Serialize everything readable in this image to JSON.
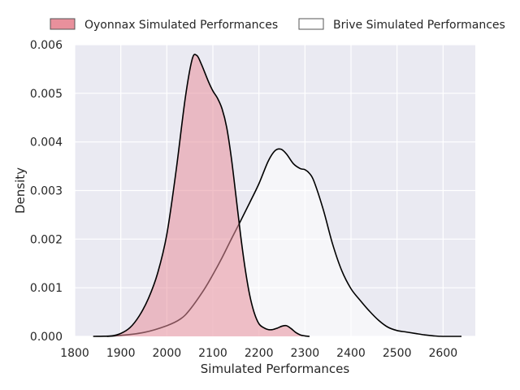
{
  "chart_data": {
    "type": "area",
    "title": "",
    "xlabel": "Simulated Performances",
    "ylabel": "Density",
    "xlim": [
      1800,
      2670
    ],
    "ylim": [
      0,
      0.006
    ],
    "xticks": [
      1800,
      1900,
      2000,
      2100,
      2200,
      2300,
      2400,
      2500,
      2600
    ],
    "xtick_labels": [
      "1800",
      "1900",
      "2000",
      "2100",
      "2200",
      "2300",
      "2400",
      "2500",
      "2600"
    ],
    "yticks": [
      0,
      0.001,
      0.002,
      0.003,
      0.004,
      0.005,
      0.006
    ],
    "ytick_labels": [
      "0.000",
      "0.001",
      "0.002",
      "0.003",
      "0.004",
      "0.005",
      "0.006"
    ],
    "grid": true,
    "legend_position": "top",
    "series": [
      {
        "name": "Oyonnax Simulated Performances",
        "color": "#e8909c",
        "fill_opacity": 0.55,
        "x": [
          1840,
          1880,
          1900,
          1920,
          1940,
          1960,
          1980,
          2000,
          2020,
          2040,
          2055,
          2065,
          2075,
          2090,
          2100,
          2110,
          2120,
          2130,
          2140,
          2150,
          2160,
          2170,
          2180,
          2190,
          2200,
          2210,
          2220,
          2230,
          2240,
          2250,
          2260,
          2270,
          2280,
          2290,
          2300,
          2310
        ],
        "y": [
          0,
          1e-05,
          6e-05,
          0.00018,
          0.00042,
          0.00078,
          0.0013,
          0.0021,
          0.0034,
          0.0049,
          0.0057,
          0.00578,
          0.0056,
          0.00525,
          0.00505,
          0.0049,
          0.00468,
          0.0043,
          0.00368,
          0.0029,
          0.0021,
          0.0014,
          0.00085,
          0.00048,
          0.00026,
          0.00018,
          0.00014,
          0.00014,
          0.00017,
          0.00021,
          0.00022,
          0.00016,
          8e-05,
          3e-05,
          1e-05,
          0
        ]
      },
      {
        "name": "Brive Simulated Performances",
        "color": "#ffffff",
        "fill_opacity": 0.55,
        "x": [
          1870,
          1900,
          1950,
          2000,
          2030,
          2050,
          2080,
          2100,
          2120,
          2140,
          2160,
          2180,
          2200,
          2220,
          2235,
          2248,
          2260,
          2275,
          2290,
          2300,
          2310,
          2320,
          2340,
          2360,
          2380,
          2400,
          2420,
          2440,
          2460,
          2480,
          2500,
          2520,
          2540,
          2560,
          2580,
          2600,
          2640
        ],
        "y": [
          0,
          2e-05,
          8e-05,
          0.00022,
          0.00036,
          0.00055,
          0.00095,
          0.00127,
          0.00162,
          0.002,
          0.00237,
          0.00275,
          0.00314,
          0.0036,
          0.00382,
          0.00385,
          0.00375,
          0.00355,
          0.00345,
          0.00343,
          0.00335,
          0.00318,
          0.0026,
          0.0019,
          0.00135,
          0.00098,
          0.00074,
          0.00052,
          0.00033,
          0.00019,
          0.00012,
          9e-05,
          6e-05,
          3e-05,
          1e-05,
          0,
          0
        ]
      }
    ]
  }
}
